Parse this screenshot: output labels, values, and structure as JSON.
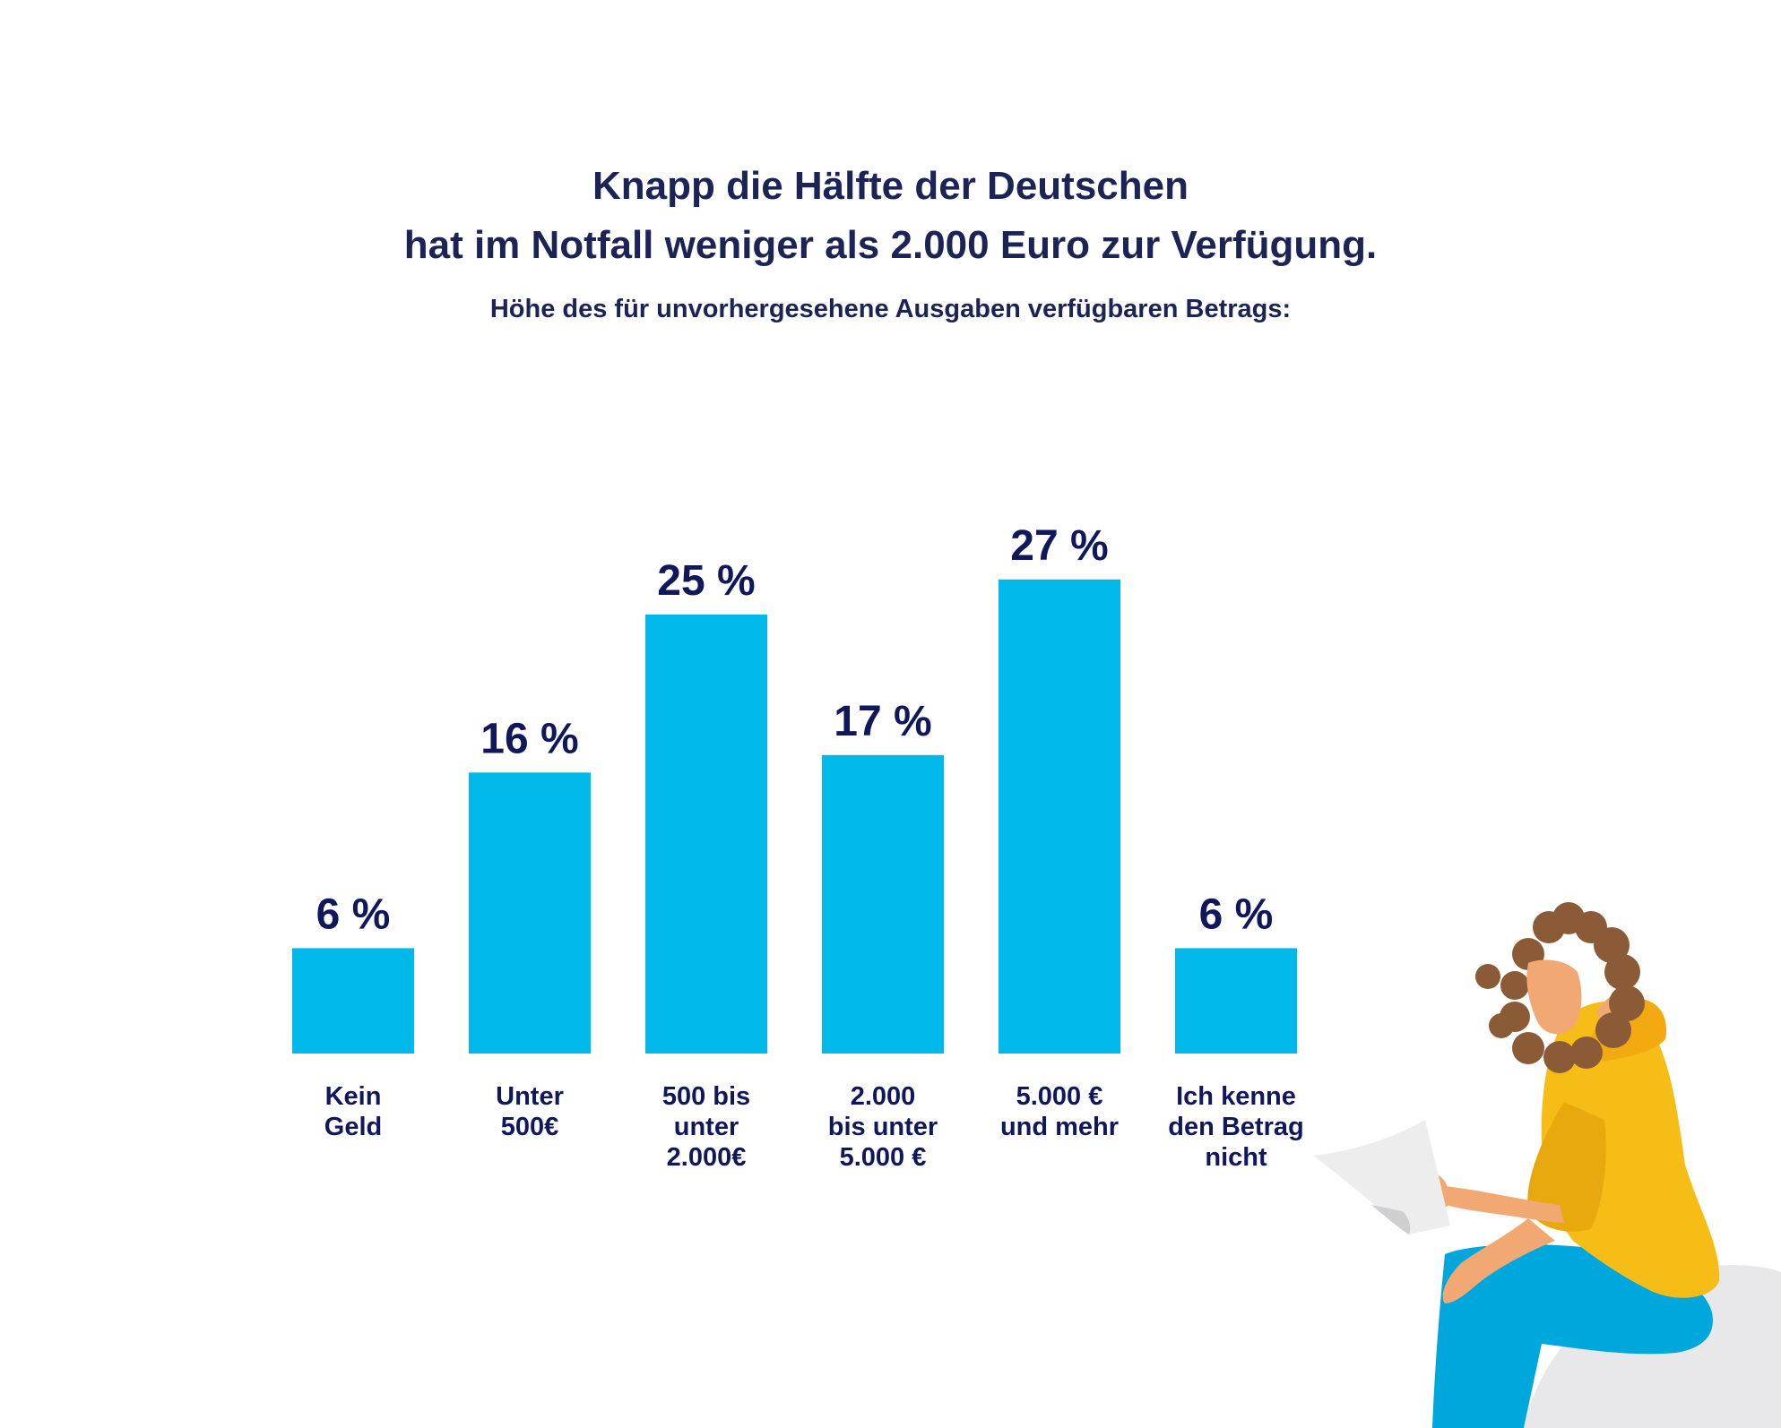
{
  "title_lines": [
    "Knapp die Hälfte der Deutschen",
    "hat im Notfall weniger als 2.000 Euro zur Verfügung."
  ],
  "subtitle": "Höhe des für unvorhergesehene Ausgaben verfügbaren Betrags:",
  "chart_data": {
    "type": "bar",
    "title": "Knapp die Hälfte der Deutschen hat im Notfall weniger als 2.000 Euro zur Verfügung.",
    "subtitle": "Höhe des für unvorhergesehene Ausgaben verfügbaren Betrags:",
    "categories": [
      [
        "Kein",
        "Geld"
      ],
      [
        "Unter",
        "500€"
      ],
      [
        "500 bis",
        "unter",
        "2.000€"
      ],
      [
        "2.000",
        "bis unter",
        "5.000 €"
      ],
      [
        "5.000 €",
        "und mehr"
      ],
      [
        "Ich kenne",
        "den Betrag",
        "nicht"
      ]
    ],
    "values": [
      6,
      16,
      25,
      17,
      27,
      6
    ],
    "value_labels": [
      "6 %",
      "16 %",
      "25 %",
      "17 %",
      "27 %",
      "6 %"
    ],
    "unit": "%",
    "ylim": [
      0,
      30
    ],
    "grid": false,
    "axes_visible": false,
    "legend": "none",
    "bar_color": "#00b9eb",
    "label_color": "#10175a"
  },
  "colors": {
    "title": "#1b2454",
    "bar": "#00b9eb",
    "label": "#10175a"
  }
}
